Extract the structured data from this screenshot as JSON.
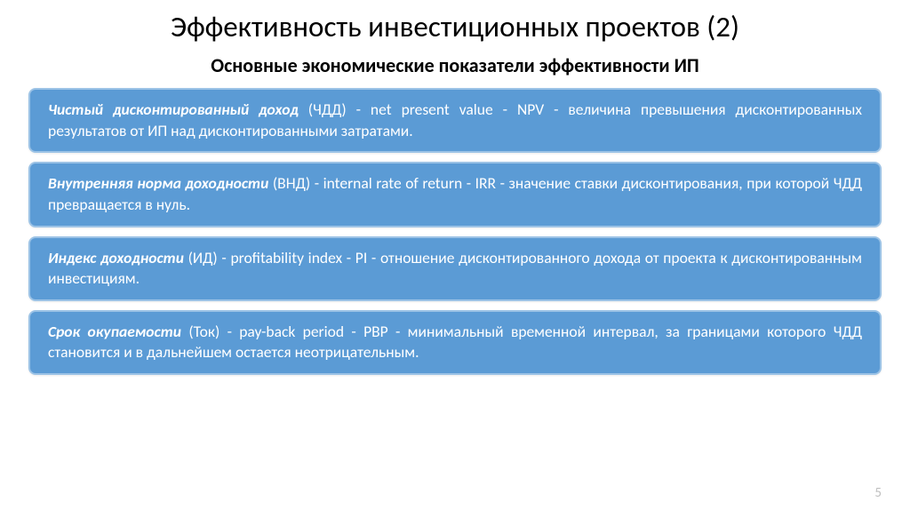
{
  "colors": {
    "background": "#ffffff",
    "title_color": "#000000",
    "subtitle_color": "#000000",
    "box_bg": "#5b9bd5",
    "box_border": "#9cc3e6",
    "box_text": "#ffffff",
    "page_num_color": "#bfbfbf"
  },
  "typography": {
    "title_fontsize": 33,
    "subtitle_fontsize": 22,
    "box_fontsize": 17.5,
    "box_border_radius": 8,
    "box_border_width": 2
  },
  "title": "Эффективность инвестиционных проектов (2)",
  "subtitle": "Основные экономические показатели эффективности ИП",
  "boxes": [
    {
      "lead": "Чистый дисконтированный доход",
      "rest": " (ЧДД) - net present value - NPV - величина превышения дисконтированных результатов от ИП над дисконтированными затратами."
    },
    {
      "lead": "Внутренняя норма доходности",
      "rest": " (ВНД) - internal rate of return - IRR - значение ставки дисконтирования, при которой ЧДД превращается в нуль."
    },
    {
      "lead": "Индекс доходности",
      "rest": " (ИД) - profitability index - PI - отношение дисконтированного дохода от проекта к дисконтированным инвестициям."
    },
    {
      "lead": "Срок окупаемости",
      "rest": " (Ток) - pay-back period - PBP - минимальный временной интервал, за границами которого ЧДД становится и в дальнейшем остается неотрицательным."
    }
  ],
  "page_number": "5"
}
